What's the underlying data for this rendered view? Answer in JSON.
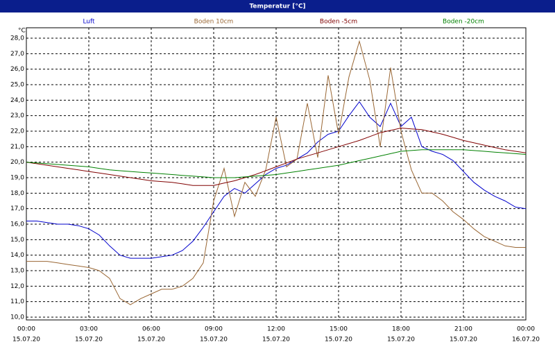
{
  "chart_data": {
    "type": "line",
    "title": "Temperatur [°C]",
    "y_unit": "°C",
    "x": [
      0,
      0.5,
      1,
      1.5,
      2,
      2.5,
      3,
      3.5,
      4,
      4.5,
      5,
      5.5,
      6,
      6.5,
      7,
      7.5,
      8,
      8.5,
      9,
      9.5,
      10,
      10.5,
      11,
      11.5,
      12,
      12.5,
      13,
      13.5,
      14,
      14.5,
      15,
      15.5,
      16,
      16.5,
      17,
      17.5,
      18,
      18.5,
      19,
      19.5,
      20,
      20.5,
      21,
      21.5,
      22,
      22.5,
      23,
      23.5,
      24
    ],
    "xlim": [
      0,
      24
    ],
    "xticks": [
      {
        "value": 0,
        "label": "00:00",
        "date": "15.07.20"
      },
      {
        "value": 3,
        "label": "03:00",
        "date": "15.07.20"
      },
      {
        "value": 6,
        "label": "06:00",
        "date": "15.07.20"
      },
      {
        "value": 9,
        "label": "09:00",
        "date": "15.07.20"
      },
      {
        "value": 12,
        "label": "12:00",
        "date": "15.07.20"
      },
      {
        "value": 15,
        "label": "15:00",
        "date": "15.07.20"
      },
      {
        "value": 18,
        "label": "18:00",
        "date": "15.07.20"
      },
      {
        "value": 21,
        "label": "21:00",
        "date": "15.07.20"
      },
      {
        "value": 24,
        "label": "00:00",
        "date": "16.07.20"
      }
    ],
    "ylim": [
      10,
      28
    ],
    "yticks": [
      {
        "value": 10,
        "label": "10,0"
      },
      {
        "value": 11,
        "label": "11,0"
      },
      {
        "value": 12,
        "label": "12,0"
      },
      {
        "value": 13,
        "label": "13,0"
      },
      {
        "value": 14,
        "label": "14,0"
      },
      {
        "value": 15,
        "label": "15,0"
      },
      {
        "value": 16,
        "label": "16,0"
      },
      {
        "value": 17,
        "label": "17,0"
      },
      {
        "value": 18,
        "label": "18,0"
      },
      {
        "value": 19,
        "label": "19,0"
      },
      {
        "value": 20,
        "label": "20,0"
      },
      {
        "value": 21,
        "label": "21,0"
      },
      {
        "value": 22,
        "label": "22,0"
      },
      {
        "value": 23,
        "label": "23,0"
      },
      {
        "value": 24,
        "label": "24,0"
      },
      {
        "value": 25,
        "label": "25,0"
      },
      {
        "value": 26,
        "label": "26,0"
      },
      {
        "value": 27,
        "label": "27,0"
      },
      {
        "value": 28,
        "label": "28,0"
      }
    ],
    "grid": true,
    "series": [
      {
        "name": "Luft",
        "color": "#0000cc",
        "values": [
          16.2,
          16.2,
          16.1,
          16.0,
          16.0,
          15.9,
          15.7,
          15.3,
          14.6,
          14.0,
          13.8,
          13.8,
          13.8,
          13.9,
          14.0,
          14.3,
          14.9,
          15.8,
          16.8,
          17.8,
          18.3,
          18.0,
          18.6,
          19.2,
          19.6,
          19.8,
          20.2,
          20.6,
          21.3,
          21.8,
          22.0,
          23.0,
          23.9,
          22.9,
          22.3,
          23.8,
          22.3,
          22.9,
          21.0,
          20.7,
          20.5,
          20.1,
          19.4,
          18.7,
          18.2,
          17.8,
          17.5,
          17.1,
          17.0
        ]
      },
      {
        "name": "Boden 10cm",
        "color": "#996633",
        "values": [
          13.6,
          13.6,
          13.6,
          13.5,
          13.4,
          13.3,
          13.2,
          13.0,
          12.5,
          11.2,
          10.8,
          11.2,
          11.5,
          11.8,
          11.8,
          12.0,
          12.5,
          13.5,
          17.5,
          19.6,
          16.5,
          18.7,
          17.8,
          19.5,
          22.9,
          19.7,
          20.2,
          23.8,
          20.3,
          25.6,
          21.8,
          25.5,
          27.8,
          25.3,
          21.0,
          26.1,
          22.0,
          19.5,
          18.0,
          18.0,
          17.5,
          16.8,
          16.3,
          15.7,
          15.2,
          14.9,
          14.6,
          14.5,
          14.5
        ]
      },
      {
        "name": "Boden -5cm",
        "color": "#800000",
        "values": [
          20.0,
          19.9,
          19.8,
          19.7,
          19.6,
          19.5,
          19.4,
          19.3,
          19.2,
          19.1,
          19.0,
          18.9,
          18.8,
          18.75,
          18.7,
          18.6,
          18.5,
          18.5,
          18.5,
          18.65,
          18.8,
          19.0,
          19.2,
          19.45,
          19.7,
          19.95,
          20.2,
          20.4,
          20.6,
          20.8,
          21.0,
          21.2,
          21.4,
          21.65,
          21.9,
          22.05,
          22.2,
          22.15,
          22.1,
          21.95,
          21.8,
          21.6,
          21.4,
          21.25,
          21.1,
          20.95,
          20.8,
          20.7,
          20.6
        ]
      },
      {
        "name": "Boden -20cm",
        "color": "#008000",
        "values": [
          20.0,
          19.95,
          19.9,
          19.85,
          19.8,
          19.75,
          19.7,
          19.6,
          19.5,
          19.45,
          19.4,
          19.35,
          19.3,
          19.25,
          19.2,
          19.15,
          19.1,
          19.05,
          19.0,
          19.0,
          19.0,
          19.05,
          19.1,
          19.15,
          19.2,
          19.3,
          19.4,
          19.5,
          19.6,
          19.7,
          19.8,
          19.95,
          20.1,
          20.25,
          20.4,
          20.55,
          20.7,
          20.75,
          20.8,
          20.8,
          20.8,
          20.8,
          20.8,
          20.75,
          20.7,
          20.65,
          20.6,
          20.55,
          20.5
        ]
      }
    ]
  }
}
